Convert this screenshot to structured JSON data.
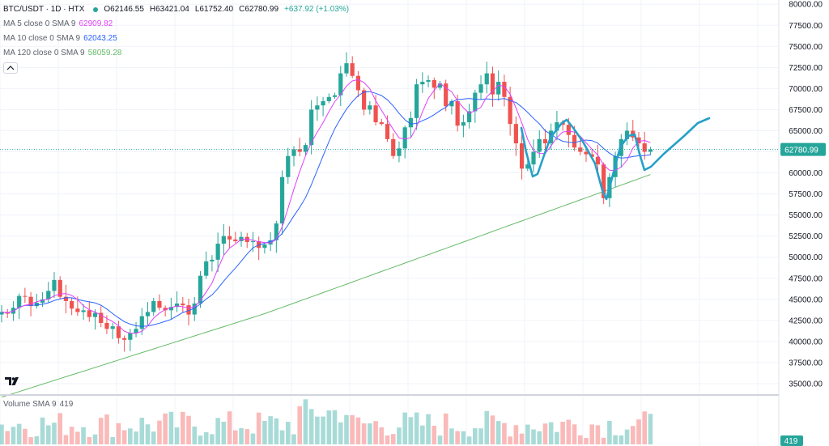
{
  "header": {
    "symbol": "BTC/USDT · 1D · HTX",
    "open": "O62146.55",
    "high": "H63421.04",
    "low": "L61752.40",
    "close": "C62780.99",
    "change": "+637.92 (+1.03%)"
  },
  "indicators": [
    {
      "label": "MA 5 close 0 SMA 9",
      "value": "62909.82",
      "color": "#e040fb"
    },
    {
      "label": "MA 10 close 0 SMA 9",
      "value": "62043.25",
      "color": "#2962ff"
    },
    {
      "label": "MA 120 close 0 SMA 9",
      "value": "58059.28",
      "color": "#66bb6a"
    }
  ],
  "volume": {
    "label": "Volume SMA 9",
    "value": "419",
    "axis_badge": "419"
  },
  "price_badge": "62780.99",
  "colors": {
    "up": "#26a69a",
    "down": "#ef5350",
    "ma5": "#e040fb",
    "ma10": "#2962ff",
    "ma120": "#66bb6a",
    "annotation": "#26a0c8",
    "last_price_line": "#26a69a"
  },
  "chart_data": {
    "type": "candlestick",
    "ylim": [
      33750,
      80500
    ],
    "y_ticks": [
      35000,
      37500,
      40000,
      42500,
      45000,
      47500,
      50000,
      52500,
      55000,
      57500,
      60000,
      62500,
      65000,
      67500,
      70000,
      72500,
      75000,
      77500,
      80000
    ],
    "y_tick_labels": [
      "35000.00",
      "37500.00",
      "40000.00",
      "42500.00",
      "45000.00",
      "47500.00",
      "50000.00",
      "52500.00",
      "55000.00",
      "57500.00",
      "60000.00",
      "62500.00",
      "65000.00",
      "67500.00",
      "70000.00",
      "72500.00",
      "75000.00",
      "77500.00",
      "80000.00"
    ],
    "last_price": 62780.99,
    "close": [
      43500,
      43300,
      44000,
      45400,
      45300,
      44200,
      44600,
      45000,
      46000,
      47300,
      45300,
      44800,
      43900,
      43500,
      43700,
      42900,
      43400,
      42200,
      41500,
      41800,
      40400,
      40200,
      41000,
      41500,
      43000,
      43500,
      44800,
      44000,
      43700,
      44100,
      44500,
      44300,
      43200,
      44500,
      47800,
      49500,
      49700,
      51600,
      52500,
      52100,
      51900,
      52400,
      51800,
      51900,
      51100,
      51500,
      52000,
      54000,
      59500,
      62000,
      62800,
      62500,
      63300,
      67500,
      68000,
      68500,
      69000,
      69200,
      71800,
      73000,
      71500,
      69800,
      67500,
      68000,
      66000,
      65800,
      64000,
      62000,
      62900,
      65400,
      66500,
      70500,
      70800,
      71000,
      70100,
      70600,
      67900,
      68500,
      65600,
      66000,
      67300,
      69500,
      70500,
      71800,
      69300,
      70800,
      69000,
      65800,
      63500,
      60500,
      61000,
      62500,
      64000,
      63500,
      65000,
      66000,
      65700,
      64500,
      63000,
      62500,
      62200,
      61900,
      61000,
      57000,
      59500,
      62000,
      64000,
      65000,
      64200,
      63500,
      62500,
      62780
    ]
  }
}
